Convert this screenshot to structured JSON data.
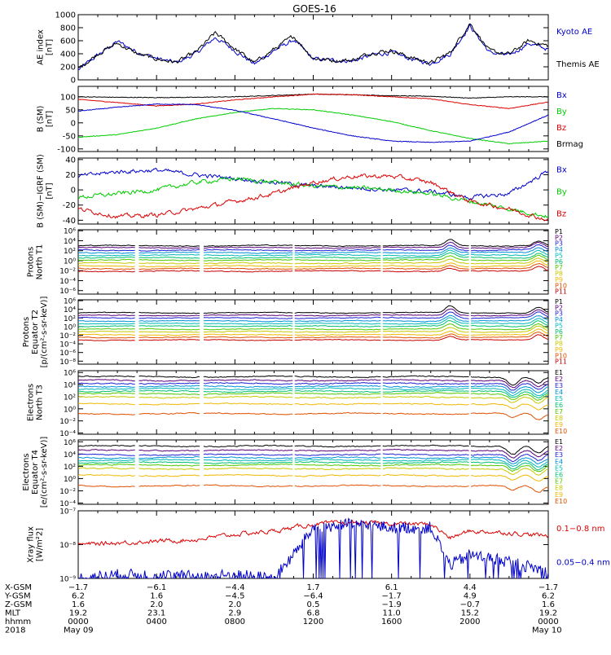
{
  "title": "GOES-16",
  "colors": {
    "black": "#000000",
    "blue": "#0000cc",
    "red": "#dd0000",
    "green": "#00cc00",
    "brmag": "#000000",
    "channels": [
      "#000000",
      "#5a0078",
      "#1f1fd6",
      "#0090d8",
      "#00b8b8",
      "#00c070",
      "#50c800",
      "#c8c800",
      "#f0b800",
      "#e05000",
      "#c80000"
    ]
  },
  "panels": [
    {
      "id": "ae",
      "ylabel": [
        "AE index",
        "[nT]"
      ],
      "log": false,
      "ylim": [
        0,
        1000
      ],
      "ticks": [
        0,
        200,
        400,
        600,
        800,
        1000
      ],
      "tick_labels": [
        "0",
        "200",
        "400",
        "600",
        "800",
        "1000"
      ],
      "legend": [
        {
          "label": "Kyoto AE",
          "color": "#0000cc"
        },
        {
          "label": "Themis AE",
          "color": "#000000"
        }
      ],
      "series": [
        {
          "name": "Kyoto AE",
          "color": "#0000cc",
          "style": "noisy",
          "hours": [
            0,
            1,
            2,
            3,
            4,
            5,
            6,
            7,
            8,
            9,
            10,
            11,
            12,
            13,
            14,
            15,
            16,
            17,
            18,
            19,
            20,
            21,
            22,
            23,
            24
          ],
          "values": [
            150,
            380,
            590,
            430,
            330,
            260,
            400,
            650,
            450,
            240,
            450,
            610,
            320,
            300,
            290,
            380,
            420,
            320,
            250,
            400,
            830,
            420,
            370,
            560,
            470
          ]
        },
        {
          "name": "Themis AE",
          "color": "#000000",
          "style": "noisy",
          "hours": [
            0,
            1,
            2,
            3,
            4,
            5,
            6,
            7,
            8,
            9,
            10,
            11,
            12,
            13,
            14,
            15,
            16,
            17,
            18,
            19,
            20,
            21,
            22,
            23,
            24
          ],
          "values": [
            170,
            400,
            560,
            400,
            320,
            270,
            420,
            720,
            480,
            260,
            470,
            670,
            330,
            300,
            300,
            420,
            450,
            340,
            260,
            420,
            870,
            440,
            390,
            600,
            520
          ]
        }
      ]
    },
    {
      "id": "bsm",
      "ylabel": [
        "B (SM)",
        "[nT]"
      ],
      "log": false,
      "ylim": [
        -110,
        140
      ],
      "ticks": [
        -100,
        -50,
        0,
        50,
        100
      ],
      "tick_labels": [
        "-100",
        "-50",
        "0",
        "50",
        "100"
      ],
      "legend": [
        {
          "label": "Bx",
          "color": "#0000cc"
        },
        {
          "label": "By",
          "color": "#00cc00"
        },
        {
          "label": "Bz",
          "color": "#dd0000"
        },
        {
          "label": "Brmag",
          "color": "#000000"
        }
      ],
      "series": [
        {
          "name": "Brmag",
          "color": "#000000",
          "style": "smooth",
          "hours": [
            0,
            2,
            4,
            6,
            8,
            10,
            12,
            14,
            16,
            18,
            20,
            22,
            24
          ],
          "values": [
            100,
            98,
            97,
            98,
            100,
            105,
            110,
            108,
            104,
            102,
            95,
            100,
            100
          ]
        },
        {
          "name": "Bz",
          "color": "#dd0000",
          "style": "smooth",
          "hours": [
            0,
            2,
            4,
            6,
            8,
            10,
            12,
            14,
            16,
            18,
            20,
            22,
            24
          ],
          "values": [
            90,
            78,
            65,
            72,
            88,
            100,
            110,
            108,
            100,
            92,
            70,
            55,
            80
          ]
        },
        {
          "name": "By",
          "color": "#00cc00",
          "style": "smooth",
          "hours": [
            0,
            2,
            4,
            6,
            8,
            10,
            12,
            14,
            16,
            18,
            20,
            22,
            24
          ],
          "values": [
            -55,
            -45,
            -20,
            15,
            40,
            55,
            50,
            30,
            5,
            -30,
            -60,
            -80,
            -70
          ]
        },
        {
          "name": "Bx",
          "color": "#0000cc",
          "style": "smooth",
          "hours": [
            0,
            2,
            4,
            6,
            8,
            10,
            12,
            14,
            16,
            18,
            20,
            22,
            24
          ],
          "values": [
            45,
            60,
            72,
            70,
            48,
            15,
            -20,
            -50,
            -70,
            -75,
            -70,
            -35,
            30
          ]
        }
      ]
    },
    {
      "id": "bigrf",
      "ylabel": [
        "B (SM)−IGRF (SM)",
        "[nT]"
      ],
      "log": false,
      "ylim": [
        -45,
        42
      ],
      "ticks": [
        -40,
        -20,
        0,
        20,
        40
      ],
      "tick_labels": [
        "-40",
        "-20",
        "0",
        "20",
        "40"
      ],
      "legend": [
        {
          "label": "Bx",
          "color": "#0000cc"
        },
        {
          "label": "By",
          "color": "#00cc00"
        },
        {
          "label": "Bz",
          "color": "#dd0000"
        }
      ],
      "series": [
        {
          "name": "Bx",
          "color": "#0000cc",
          "style": "noisy",
          "hours": [
            0,
            2,
            4,
            6,
            8,
            10,
            12,
            14,
            16,
            18,
            20,
            22,
            24
          ],
          "values": [
            18,
            24,
            26,
            20,
            15,
            10,
            5,
            3,
            0,
            -2,
            -10,
            -5,
            25
          ]
        },
        {
          "name": "By",
          "color": "#00cc00",
          "style": "noisy",
          "hours": [
            0,
            2,
            4,
            6,
            8,
            10,
            12,
            14,
            16,
            18,
            20,
            22,
            24
          ],
          "values": [
            -10,
            -5,
            0,
            10,
            15,
            10,
            5,
            3,
            0,
            -5,
            -15,
            -25,
            -35
          ]
        },
        {
          "name": "Bz",
          "color": "#dd0000",
          "style": "noisy",
          "hours": [
            0,
            2,
            4,
            6,
            8,
            10,
            12,
            14,
            16,
            18,
            20,
            22,
            24
          ],
          "values": [
            -25,
            -35,
            -33,
            -25,
            -15,
            -5,
            10,
            18,
            18,
            10,
            -15,
            -25,
            -40
          ]
        }
      ]
    },
    {
      "id": "pnt1",
      "ylabel": [
        "Protons",
        "North T1"
      ],
      "log": true,
      "ylim": [
        -6.7,
        6.2
      ],
      "ticks": [
        -6,
        -4,
        -2,
        0,
        2,
        4,
        6
      ],
      "tick_labels": [
        "10⁻⁶",
        "10⁻⁴",
        "10⁻²",
        "10⁰",
        "10²",
        "10⁴",
        "10⁶"
      ],
      "legend_small": true,
      "legend": [
        {
          "label": "P1"
        },
        {
          "label": "P2"
        },
        {
          "label": "P3"
        },
        {
          "label": "P4"
        },
        {
          "label": "P5"
        },
        {
          "label": "P6"
        },
        {
          "label": "P7"
        },
        {
          "label": "P8"
        },
        {
          "label": "P9"
        },
        {
          "label": "P10"
        },
        {
          "label": "P11"
        }
      ],
      "channels": {
        "levels": [
          3.0,
          2.6,
          2.1,
          1.6,
          1.1,
          0.6,
          0.1,
          -0.5,
          -1.1,
          -1.6,
          -2.1
        ],
        "event_hour": 19.0,
        "event_amp": 1.2
      }
    },
    {
      "id": "pet2",
      "ylabel": [
        "Protons",
        "Equator T2",
        "[p/(cm²-s-sr-keV)]"
      ],
      "log": true,
      "ylim": [
        -8.7,
        6.2
      ],
      "ticks": [
        -8,
        -6,
        -4,
        -2,
        0,
        2,
        4,
        6
      ],
      "tick_labels": [
        "10⁻⁸",
        "10⁻⁶",
        "10⁻⁴",
        "10⁻²",
        "10⁰",
        "10²",
        "10⁴",
        "10⁶"
      ],
      "legend_small": true,
      "legend": [
        {
          "label": "P1"
        },
        {
          "label": "P2"
        },
        {
          "label": "P3"
        },
        {
          "label": "P4"
        },
        {
          "label": "P5"
        },
        {
          "label": "P6"
        },
        {
          "label": "P7"
        },
        {
          "label": "P8"
        },
        {
          "label": "P9"
        },
        {
          "label": "P10"
        },
        {
          "label": "P11"
        }
      ],
      "channels": {
        "levels": [
          3.2,
          2.6,
          2.0,
          1.3,
          0.7,
          0.1,
          -0.6,
          -1.2,
          -1.9,
          -2.5,
          -3.1
        ],
        "event_hour": 19.0,
        "event_amp": 1.6
      }
    },
    {
      "id": "ent3",
      "ylabel": [
        "Electrons",
        "North T3"
      ],
      "log": true,
      "ylim": [
        -4.2,
        6.3
      ],
      "ticks": [
        -4,
        -2,
        0,
        2,
        4,
        6
      ],
      "tick_labels": [
        "10⁻⁴",
        "10⁻²",
        "10⁰",
        "10²",
        "10⁴",
        "10⁶"
      ],
      "legend_small": true,
      "legend": [
        {
          "label": "E1"
        },
        {
          "label": "E2"
        },
        {
          "label": "E3"
        },
        {
          "label": "E4"
        },
        {
          "label": "E5"
        },
        {
          "label": "E6"
        },
        {
          "label": "E7"
        },
        {
          "label": "E8"
        },
        {
          "label": "E9"
        },
        {
          "label": "E10"
        }
      ],
      "channels": {
        "levels": [
          5.3,
          4.7,
          4.2,
          3.7,
          3.3,
          2.9,
          2.5,
          1.9,
          0.8,
          -0.8
        ],
        "event_hour": 22.2,
        "event_amp": -1.3
      }
    },
    {
      "id": "eet4",
      "ylabel": [
        "Electrons",
        "Equator T4",
        "[e/(cm²-s-sr-keV)]"
      ],
      "log": true,
      "ylim": [
        -4.2,
        6.3
      ],
      "ticks": [
        -4,
        -2,
        0,
        2,
        4,
        6
      ],
      "tick_labels": [
        "10⁻⁴",
        "10⁻²",
        "10⁰",
        "10²",
        "10⁴",
        "10⁶"
      ],
      "legend_small": true,
      "legend": [
        {
          "label": "E1"
        },
        {
          "label": "E2"
        },
        {
          "label": "E3"
        },
        {
          "label": "E4"
        },
        {
          "label": "E5"
        },
        {
          "label": "E6"
        },
        {
          "label": "E7"
        },
        {
          "label": "E8"
        },
        {
          "label": "E9"
        },
        {
          "label": "E10"
        }
      ],
      "channels": {
        "levels": [
          5.3,
          4.6,
          3.9,
          3.4,
          3.0,
          2.6,
          2.2,
          1.6,
          0.5,
          -1.2
        ],
        "event_hour": 22.2,
        "event_amp": -1.3
      }
    },
    {
      "id": "xray",
      "ylabel": [
        "Xray flux",
        "[W/m²2]"
      ],
      "log": true,
      "ylim": [
        -9,
        -7
      ],
      "ticks": [
        -9,
        -8,
        -7
      ],
      "tick_labels": [
        "10⁻⁹",
        "10⁻⁸",
        "10⁻⁷"
      ],
      "legend": [
        {
          "label": "0.1−0.8 nm",
          "color": "#dd0000"
        },
        {
          "label": "0.05−0.4 nm",
          "color": "#0000cc"
        }
      ],
      "series": [
        {
          "name": "0.1−0.8 nm",
          "color": "#dd0000",
          "style": "noisy",
          "hours": [
            0,
            2,
            4,
            6,
            8,
            10,
            12,
            14,
            16,
            18,
            19,
            20,
            22,
            24
          ],
          "values": [
            -8.0,
            -7.95,
            -7.9,
            -7.85,
            -7.7,
            -7.6,
            -7.4,
            -7.35,
            -7.38,
            -7.4,
            -7.8,
            -7.6,
            -7.65,
            -7.75
          ]
        },
        {
          "name": "0.05−0.4 nm",
          "color": "#0000cc",
          "style": "veryNoisy",
          "hours": [
            0,
            2,
            4,
            6,
            8,
            10,
            11,
            12,
            14,
            16,
            18,
            19,
            20,
            22,
            24
          ],
          "values": [
            -9.0,
            -8.9,
            -8.9,
            -8.95,
            -8.9,
            -9.0,
            -8.3,
            -7.5,
            -7.4,
            -7.5,
            -7.5,
            -8.6,
            -8.3,
            -8.5,
            -8.8
          ]
        }
      ]
    }
  ],
  "x_axis": {
    "hours": [
      0,
      4,
      8,
      12,
      16,
      20,
      24
    ],
    "rows": [
      {
        "label": "X-GSM",
        "values": [
          "−1.7",
          "−6.1",
          "−4.4",
          "1.7",
          "6.1",
          "4.4",
          "−1.7"
        ]
      },
      {
        "label": "Y-GSM",
        "values": [
          "6.2",
          "1.6",
          "−4.5",
          "−6.4",
          "−1.7",
          "4.9",
          "6.2"
        ]
      },
      {
        "label": "Z-GSM",
        "values": [
          "1.6",
          "2.0",
          "2.0",
          "0.5",
          "−1.9",
          "−0.7",
          "1.6"
        ]
      },
      {
        "label": "MLT",
        "values": [
          "19.2",
          "23.1",
          "2.9",
          "6.8",
          "11.0",
          "15.2",
          "19.2"
        ]
      },
      {
        "label": "hhmm",
        "values": [
          "0000",
          "0400",
          "0800",
          "1200",
          "1600",
          "2000",
          "0000"
        ]
      }
    ],
    "year": "2018",
    "date_start": "May 09",
    "date_end": "May 10"
  }
}
